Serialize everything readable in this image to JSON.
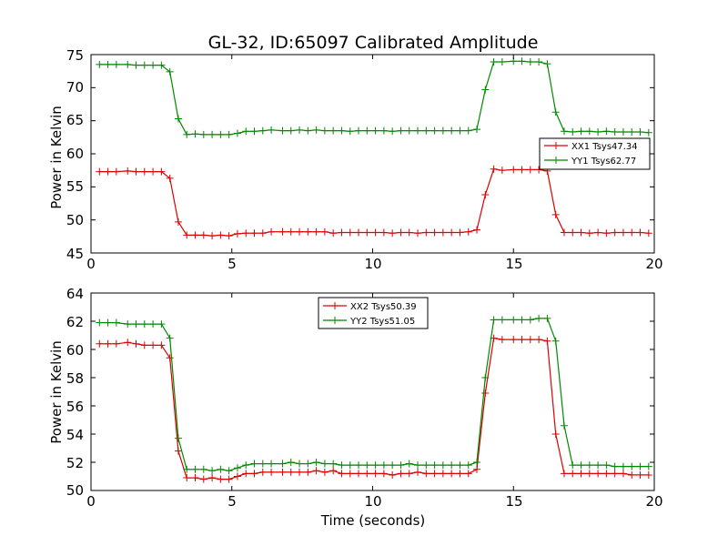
{
  "chart_data": [
    {
      "type": "line",
      "title": "GL-32, ID:65097 Calibrated Amplitude",
      "xlabel": "",
      "ylabel": "Power in Kelvin",
      "xlim": [
        0,
        20
      ],
      "ylim": [
        45,
        75
      ],
      "xticks": [
        "0",
        "5",
        "10",
        "15",
        "20"
      ],
      "yticks": [
        "45",
        "50",
        "55",
        "60",
        "65",
        "70",
        "75"
      ],
      "legend_position": "center-right",
      "grid": false,
      "x": [
        0.3,
        0.6,
        0.9,
        1.3,
        1.6,
        1.9,
        2.2,
        2.5,
        2.8,
        3.1,
        3.4,
        3.7,
        4.0,
        4.3,
        4.6,
        4.9,
        5.2,
        5.5,
        5.8,
        6.1,
        6.4,
        6.8,
        7.1,
        7.4,
        7.7,
        8.0,
        8.3,
        8.6,
        8.9,
        9.2,
        9.5,
        9.8,
        10.1,
        10.4,
        10.7,
        11.0,
        11.3,
        11.6,
        11.9,
        12.2,
        12.5,
        12.8,
        13.1,
        13.4,
        13.7,
        14.0,
        14.3,
        14.6,
        15.0,
        15.3,
        15.6,
        15.9,
        16.2,
        16.5,
        16.8,
        17.1,
        17.4,
        17.7,
        18.0,
        18.3,
        18.6,
        18.9,
        19.2,
        19.5,
        19.8
      ],
      "series": [
        {
          "name": "XX1 Tsys47.34",
          "color": "#dd0000",
          "values": [
            57.3,
            57.3,
            57.3,
            57.4,
            57.3,
            57.3,
            57.3,
            57.3,
            56.3,
            49.7,
            47.7,
            47.7,
            47.7,
            47.6,
            47.7,
            47.6,
            47.9,
            48.0,
            48.0,
            48.0,
            48.2,
            48.2,
            48.2,
            48.2,
            48.2,
            48.2,
            48.2,
            48.0,
            48.1,
            48.1,
            48.1,
            48.1,
            48.1,
            48.1,
            48.0,
            48.1,
            48.1,
            48.0,
            48.1,
            48.1,
            48.1,
            48.1,
            48.1,
            48.2,
            48.5,
            53.8,
            57.7,
            57.5,
            57.6,
            57.6,
            57.6,
            57.6,
            57.4,
            50.8,
            48.1,
            48.1,
            48.1,
            48.0,
            48.1,
            48.0,
            48.1,
            48.1,
            48.1,
            48.1,
            48.0
          ]
        },
        {
          "name": "YY1 Tsys62.77",
          "color": "#008800",
          "values": [
            73.5,
            73.5,
            73.5,
            73.5,
            73.4,
            73.4,
            73.4,
            73.4,
            72.4,
            65.3,
            62.9,
            63.0,
            62.9,
            62.9,
            62.9,
            62.9,
            63.1,
            63.4,
            63.4,
            63.5,
            63.6,
            63.5,
            63.5,
            63.6,
            63.5,
            63.6,
            63.5,
            63.5,
            63.5,
            63.4,
            63.5,
            63.5,
            63.5,
            63.5,
            63.4,
            63.5,
            63.5,
            63.5,
            63.5,
            63.5,
            63.5,
            63.5,
            63.5,
            63.5,
            63.7,
            69.7,
            73.9,
            73.9,
            74.0,
            74.0,
            73.9,
            73.9,
            73.6,
            66.3,
            63.4,
            63.3,
            63.4,
            63.4,
            63.3,
            63.4,
            63.3,
            63.3,
            63.3,
            63.3,
            63.2
          ]
        }
      ]
    },
    {
      "type": "line",
      "title": "",
      "xlabel": "Time (seconds)",
      "ylabel": "Power in Kelvin",
      "xlim": [
        0,
        20
      ],
      "ylim": [
        50,
        64
      ],
      "xticks": [
        "0",
        "5",
        "10",
        "15",
        "20"
      ],
      "yticks": [
        "50",
        "52",
        "54",
        "56",
        "58",
        "60",
        "62",
        "64"
      ],
      "legend_position": "top-center",
      "grid": false,
      "x": [
        0.3,
        0.6,
        0.9,
        1.3,
        1.6,
        1.9,
        2.2,
        2.5,
        2.8,
        3.1,
        3.4,
        3.7,
        4.0,
        4.3,
        4.6,
        4.9,
        5.2,
        5.5,
        5.8,
        6.1,
        6.4,
        6.8,
        7.1,
        7.4,
        7.7,
        8.0,
        8.3,
        8.6,
        8.9,
        9.2,
        9.5,
        9.8,
        10.1,
        10.4,
        10.7,
        11.0,
        11.3,
        11.6,
        11.9,
        12.2,
        12.5,
        12.8,
        13.1,
        13.4,
        13.7,
        14.0,
        14.3,
        14.6,
        15.0,
        15.3,
        15.6,
        15.9,
        16.2,
        16.5,
        16.8,
        17.1,
        17.4,
        17.7,
        18.0,
        18.3,
        18.6,
        18.9,
        19.2,
        19.5,
        19.8
      ],
      "series": [
        {
          "name": "XX2 Tsys50.39",
          "color": "#dd0000",
          "values": [
            60.4,
            60.4,
            60.4,
            60.5,
            60.4,
            60.3,
            60.3,
            60.3,
            59.4,
            52.8,
            50.9,
            50.9,
            50.8,
            50.9,
            50.8,
            50.8,
            51.0,
            51.2,
            51.2,
            51.3,
            51.3,
            51.3,
            51.3,
            51.3,
            51.3,
            51.4,
            51.3,
            51.4,
            51.2,
            51.2,
            51.2,
            51.2,
            51.2,
            51.2,
            51.1,
            51.2,
            51.2,
            51.3,
            51.2,
            51.2,
            51.2,
            51.2,
            51.2,
            51.2,
            51.5,
            56.9,
            60.8,
            60.7,
            60.7,
            60.7,
            60.7,
            60.7,
            60.6,
            54.0,
            51.2,
            51.2,
            51.2,
            51.2,
            51.2,
            51.2,
            51.2,
            51.2,
            51.1,
            51.1,
            51.1
          ]
        },
        {
          "name": "YY2 Tsys51.05",
          "color": "#008800",
          "values": [
            61.9,
            61.9,
            61.9,
            61.8,
            61.8,
            61.8,
            61.8,
            61.8,
            60.8,
            53.7,
            51.5,
            51.5,
            51.5,
            51.4,
            51.5,
            51.4,
            51.6,
            51.8,
            51.9,
            51.9,
            51.9,
            51.9,
            52.0,
            51.9,
            51.9,
            52.0,
            51.9,
            51.9,
            51.8,
            51.8,
            51.8,
            51.8,
            51.8,
            51.8,
            51.8,
            51.8,
            51.9,
            51.8,
            51.8,
            51.8,
            51.8,
            51.8,
            51.8,
            51.8,
            52.0,
            58.0,
            62.1,
            62.1,
            62.1,
            62.1,
            62.1,
            62.2,
            62.2,
            60.6,
            54.6,
            51.8,
            51.8,
            51.8,
            51.8,
            51.8,
            51.7,
            51.7,
            51.7,
            51.7,
            51.7
          ]
        }
      ]
    }
  ]
}
